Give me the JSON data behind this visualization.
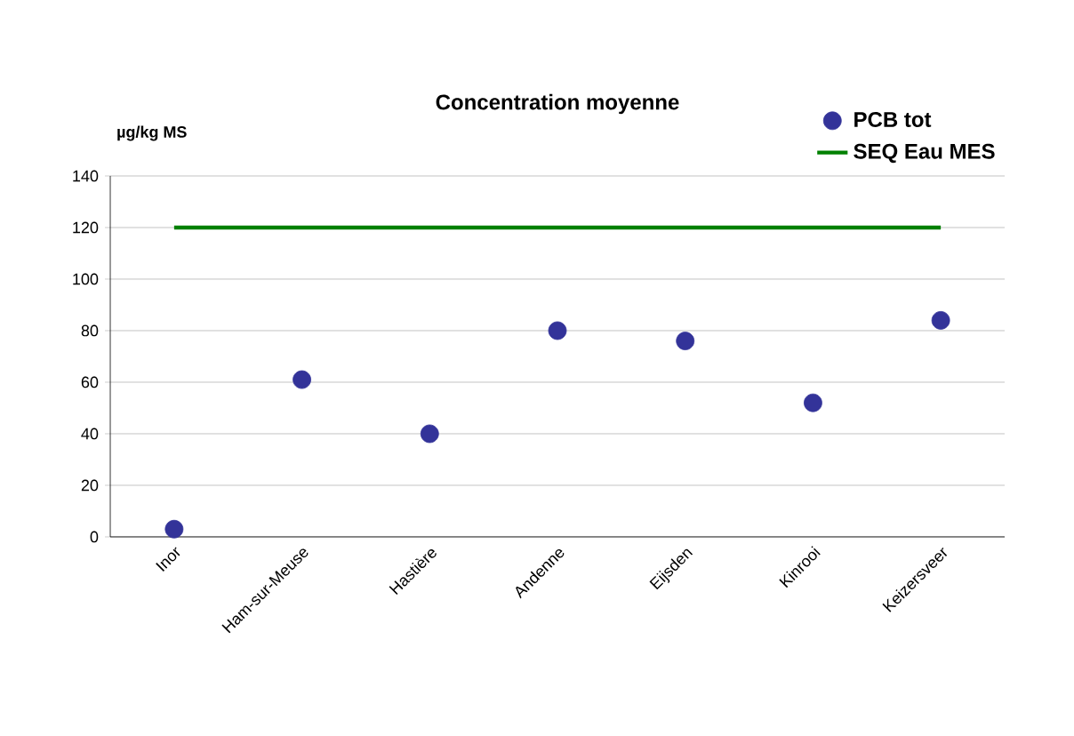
{
  "chart_data": {
    "type": "scatter",
    "title": "Concentration moyenne",
    "ylabel": "µg/kg MS",
    "categories": [
      "Inor",
      "Ham-sur-Meuse",
      "Hastière",
      "Andenne",
      "Eijsden",
      "Kinrooi",
      "Keizersveer"
    ],
    "series": [
      {
        "name": "PCB tot",
        "color": "#333399",
        "marker": "circle",
        "values": [
          3,
          61,
          40,
          80,
          76,
          52,
          84
        ]
      },
      {
        "name": "SEQ Eau MES",
        "type": "line",
        "color": "#008000",
        "marker": "none",
        "values": [
          120,
          120,
          120,
          120,
          120,
          120,
          120
        ]
      }
    ],
    "ylim": [
      0,
      140
    ],
    "yticks": [
      0,
      20,
      40,
      60,
      80,
      100,
      120,
      140
    ],
    "grid": "y",
    "legend": "top right"
  }
}
